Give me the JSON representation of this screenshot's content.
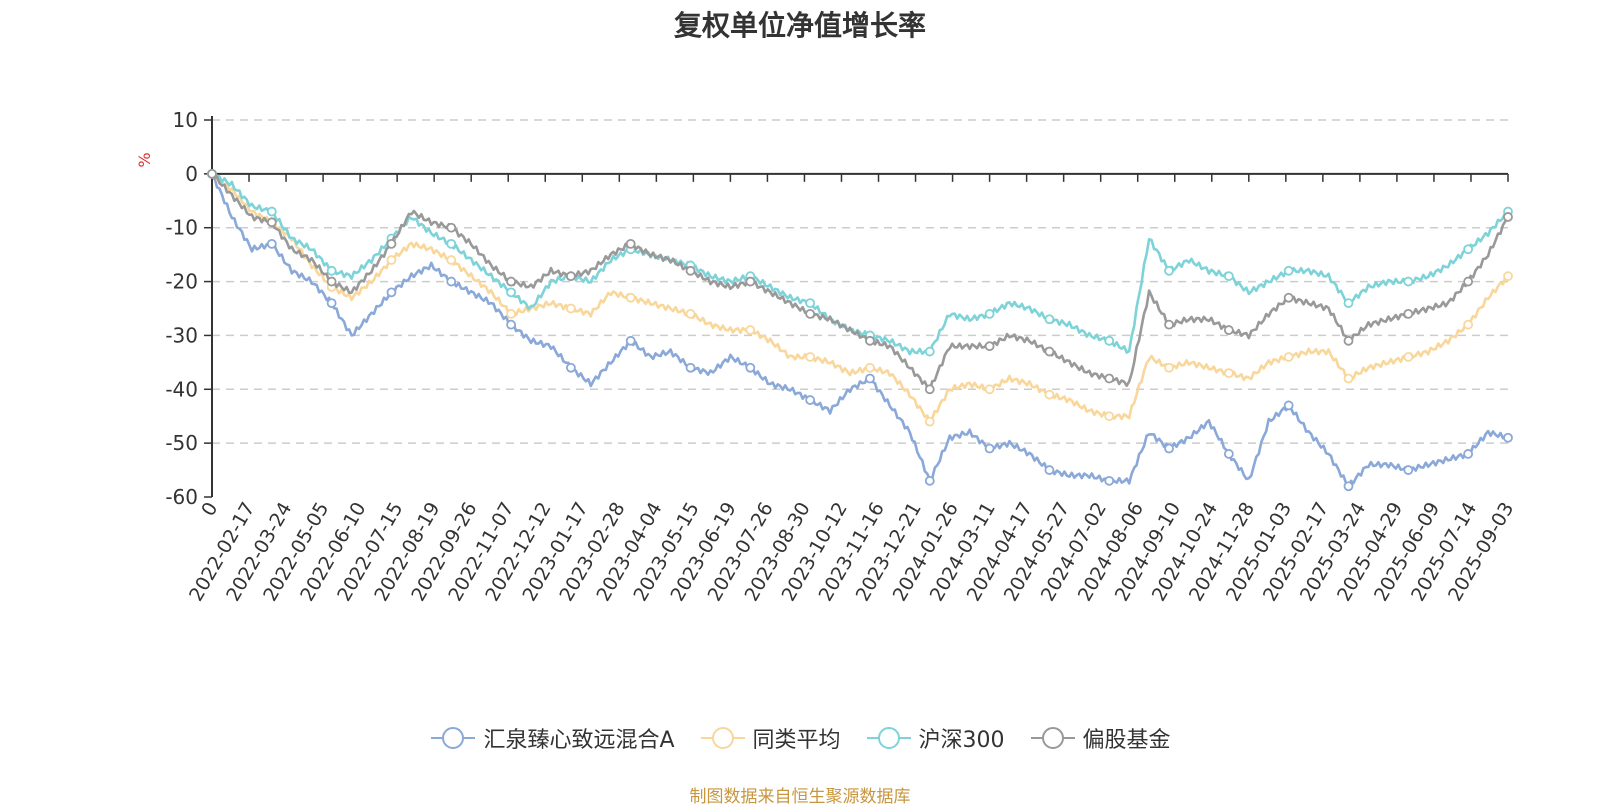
{
  "chart_data": {
    "type": "line",
    "title": "复权单位净值增长率",
    "ylabel": "%",
    "ylim": [
      -60,
      10
    ],
    "y_ticks": [
      10,
      0,
      -10,
      -20,
      -30,
      -40,
      -50,
      -60
    ],
    "grid": true,
    "legend_position": "bottom",
    "x_tick_labels": [
      "0",
      "2022-02-17",
      "2022-03-24",
      "2022-05-05",
      "2022-06-10",
      "2022-07-15",
      "2022-08-19",
      "2022-09-26",
      "2022-11-07",
      "2022-12-12",
      "2023-01-17",
      "2023-02-28",
      "2023-04-04",
      "2023-05-15",
      "2023-06-19",
      "2023-07-26",
      "2023-08-30",
      "2023-10-12",
      "2023-11-16",
      "2023-12-21",
      "2024-01-26",
      "2024-03-11",
      "2024-04-17",
      "2024-05-27",
      "2024-07-02",
      "2024-08-06",
      "2024-09-10",
      "2024-10-24",
      "2024-11-28",
      "2025-01-03",
      "2025-02-17",
      "2025-03-24",
      "2025-04-29",
      "2025-06-09",
      "2025-07-14",
      "2025-09-03"
    ],
    "series": [
      {
        "name": "汇泉臻心致远混合A",
        "color": "#8aa8d8",
        "values": [
          0,
          -8,
          -14,
          -13,
          -18,
          -20,
          -24,
          -30,
          -26,
          -22,
          -19,
          -17,
          -20,
          -22,
          -24,
          -28,
          -31,
          -32,
          -36,
          -39,
          -35,
          -31,
          -34,
          -33,
          -36,
          -37,
          -34,
          -36,
          -39,
          -40,
          -42,
          -44,
          -40,
          -38,
          -43,
          -48,
          -57,
          -49,
          -48,
          -51,
          -50,
          -52,
          -55,
          -56,
          -56,
          -57,
          -57,
          -48,
          -51,
          -49,
          -46,
          -52,
          -57,
          -46,
          -43,
          -48,
          -52,
          -58,
          -54,
          -54,
          -55,
          -54,
          -53,
          -52,
          -48,
          -49
        ]
      },
      {
        "name": "同类平均",
        "color": "#f9d79b",
        "values": [
          0,
          -3,
          -7,
          -9,
          -12,
          -17,
          -21,
          -23,
          -20,
          -16,
          -13,
          -14,
          -16,
          -19,
          -22,
          -26,
          -25,
          -24,
          -25,
          -26,
          -22,
          -23,
          -24,
          -25,
          -26,
          -28,
          -29,
          -29,
          -31,
          -34,
          -34,
          -35,
          -37,
          -36,
          -37,
          -41,
          -46,
          -40,
          -39,
          -40,
          -38,
          -39,
          -41,
          -42,
          -44,
          -45,
          -45,
          -34,
          -36,
          -35,
          -36,
          -37,
          -38,
          -35,
          -34,
          -33,
          -33,
          -38,
          -36,
          -35,
          -34,
          -33,
          -31,
          -28,
          -23,
          -19
        ]
      },
      {
        "name": "沪深300",
        "color": "#7dd3d8",
        "values": [
          0,
          -2,
          -6,
          -7,
          -12,
          -14,
          -18,
          -19,
          -16,
          -12,
          -8,
          -11,
          -13,
          -16,
          -19,
          -22,
          -25,
          -20,
          -19,
          -20,
          -16,
          -14,
          -15,
          -16,
          -17,
          -19,
          -20,
          -19,
          -21,
          -23,
          -24,
          -27,
          -29,
          -30,
          -31,
          -33,
          -33,
          -26,
          -27,
          -26,
          -24,
          -25,
          -27,
          -28,
          -30,
          -31,
          -33,
          -12,
          -18,
          -16,
          -18,
          -19,
          -22,
          -20,
          -18,
          -18,
          -19,
          -24,
          -21,
          -20,
          -20,
          -19,
          -17,
          -14,
          -11,
          -7
        ]
      },
      {
        "name": "偏股基金",
        "color": "#999999",
        "values": [
          0,
          -4,
          -8,
          -9,
          -14,
          -16,
          -20,
          -22,
          -18,
          -13,
          -7,
          -9,
          -10,
          -13,
          -17,
          -20,
          -21,
          -18,
          -19,
          -18,
          -15,
          -13,
          -15,
          -16,
          -18,
          -20,
          -21,
          -20,
          -22,
          -24,
          -26,
          -27,
          -29,
          -31,
          -32,
          -36,
          -40,
          -32,
          -32,
          -32,
          -30,
          -31,
          -33,
          -35,
          -37,
          -38,
          -39,
          -22,
          -28,
          -27,
          -27,
          -29,
          -30,
          -26,
          -23,
          -24,
          -25,
          -31,
          -28,
          -27,
          -26,
          -25,
          -24,
          -20,
          -15,
          -8
        ]
      }
    ]
  },
  "source_note": "制图数据来自恒生聚源数据库"
}
